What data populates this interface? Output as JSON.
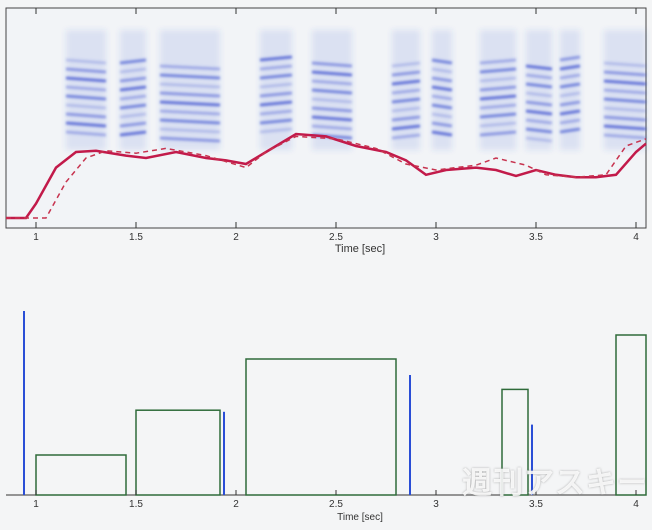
{
  "top_plot": {
    "xlabel": "Time [sec]",
    "ticks": [
      "1",
      "1.5",
      "2",
      "2.5",
      "3",
      "3.5",
      "4"
    ]
  },
  "bottom_plot": {
    "xlabel": "Time [sec]",
    "ticks": [
      "1",
      "1.5",
      "2",
      "2.5",
      "3",
      "3.5",
      "4"
    ]
  },
  "watermark": "週刊アスキー",
  "colors": {
    "spectrogram": "#3a4fd0",
    "pitch_solid": "#c21a4a",
    "pitch_dashed": "#c7334f",
    "note_box": "#2f6b3a",
    "onset_line": "#2a4ed6"
  },
  "chart_data": [
    {
      "type": "line",
      "title": "",
      "xlabel": "Time [sec]",
      "ylabel": "",
      "xlim": [
        0.85,
        4.05
      ],
      "series": [
        {
          "x": [
            0.85,
            0.95,
            1.0,
            1.1,
            1.2,
            1.3,
            1.45,
            1.55,
            1.7,
            1.85,
            1.95,
            2.05,
            2.15,
            2.3,
            2.45,
            2.6,
            2.75,
            2.85,
            2.95,
            3.05,
            3.2,
            3.3,
            3.4,
            3.5,
            3.6,
            3.7,
            3.8,
            3.9,
            4.0,
            4.05
          ],
          "values": [
            0.0,
            0.0,
            0.12,
            0.42,
            0.55,
            0.56,
            0.52,
            0.5,
            0.55,
            0.5,
            0.48,
            0.45,
            0.55,
            0.7,
            0.68,
            0.6,
            0.55,
            0.48,
            0.36,
            0.4,
            0.42,
            0.4,
            0.35,
            0.4,
            0.36,
            0.34,
            0.34,
            0.36,
            0.55,
            0.62
          ]
        },
        {
          "x": [
            0.85,
            1.05,
            1.15,
            1.25,
            1.35,
            1.5,
            1.65,
            1.85,
            2.05,
            2.15,
            2.3,
            2.5,
            2.7,
            2.85,
            3.0,
            3.2,
            3.3,
            3.45,
            3.55,
            3.7,
            3.85,
            3.95,
            4.05
          ],
          "values": [
            0.0,
            0.0,
            0.3,
            0.5,
            0.56,
            0.54,
            0.58,
            0.52,
            0.42,
            0.55,
            0.68,
            0.66,
            0.58,
            0.45,
            0.4,
            0.44,
            0.5,
            0.44,
            0.36,
            0.34,
            0.36,
            0.6,
            0.66
          ]
        }
      ]
    },
    {
      "type": "bar",
      "title": "",
      "xlabel": "Time [sec]",
      "ylabel": "",
      "xlim": [
        0.85,
        4.05
      ],
      "notes": [
        {
          "start": 1.0,
          "end": 1.45,
          "height": 0.25
        },
        {
          "start": 1.5,
          "end": 1.92,
          "height": 0.53
        },
        {
          "start": 2.05,
          "end": 2.8,
          "height": 0.85
        },
        {
          "start": 3.33,
          "end": 3.46,
          "height": 0.66
        },
        {
          "start": 3.9,
          "end": 4.05,
          "height": 1.0
        }
      ],
      "onsets": [
        {
          "t": 0.94,
          "height": 1.15
        },
        {
          "t": 1.94,
          "height": 0.52
        },
        {
          "t": 2.87,
          "height": 0.75
        },
        {
          "t": 3.48,
          "height": 0.44
        }
      ]
    }
  ]
}
